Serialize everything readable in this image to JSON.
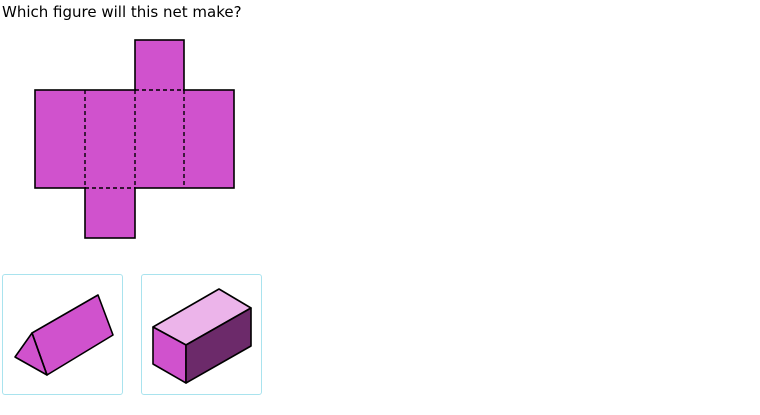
{
  "question": {
    "text": "Which figure will this net make?"
  },
  "colors": {
    "face": "#d052cd",
    "face_light": "#ecb4ea",
    "face_dark": "#6c2a6a",
    "stroke": "#000000",
    "choice_border": "#a9e3ee"
  },
  "net": {
    "shape": "rectangular prism net",
    "faces": [
      "top-flap",
      "face-1",
      "face-2",
      "face-3",
      "face-4",
      "bottom-flap"
    ]
  },
  "choices": [
    {
      "id": "a",
      "figure": "triangular-prism"
    },
    {
      "id": "b",
      "figure": "rectangular-prism"
    }
  ]
}
